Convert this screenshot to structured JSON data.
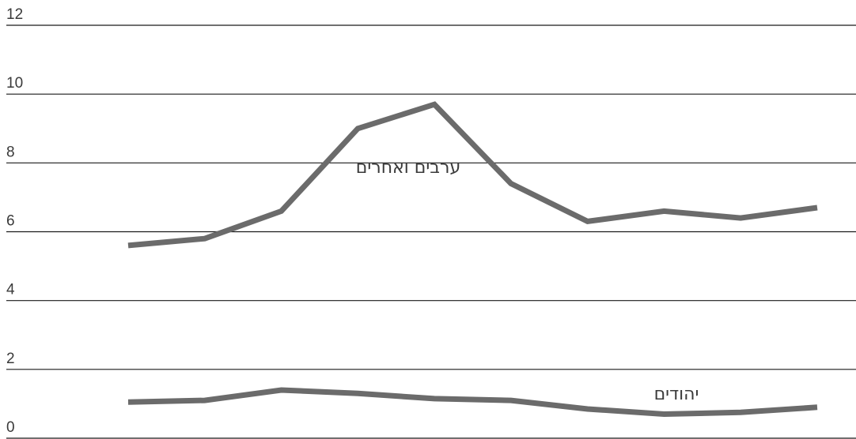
{
  "chart_data": {
    "type": "line",
    "title": "",
    "xlabel": "",
    "ylabel": "",
    "ylim": [
      0,
      12
    ],
    "yticks": [
      0,
      2,
      4,
      6,
      8,
      10,
      12
    ],
    "ytick_labels": [
      "0",
      "2",
      "4",
      "6",
      "8",
      "10",
      "12"
    ],
    "grid": true,
    "legend": "none",
    "x": [
      1,
      2,
      3,
      4,
      5,
      6,
      7,
      8,
      9,
      10
    ],
    "series": [
      {
        "name": "ערבים ואחרים",
        "color": "#6b6b6b",
        "values": [
          5.6,
          5.8,
          6.6,
          9.0,
          9.7,
          7.4,
          6.3,
          6.6,
          6.4,
          6.7
        ]
      },
      {
        "name": "יהודים",
        "color": "#6b6b6b",
        "values": [
          1.05,
          1.1,
          1.4,
          1.3,
          1.15,
          1.1,
          0.85,
          0.7,
          0.75,
          0.9
        ]
      }
    ]
  }
}
